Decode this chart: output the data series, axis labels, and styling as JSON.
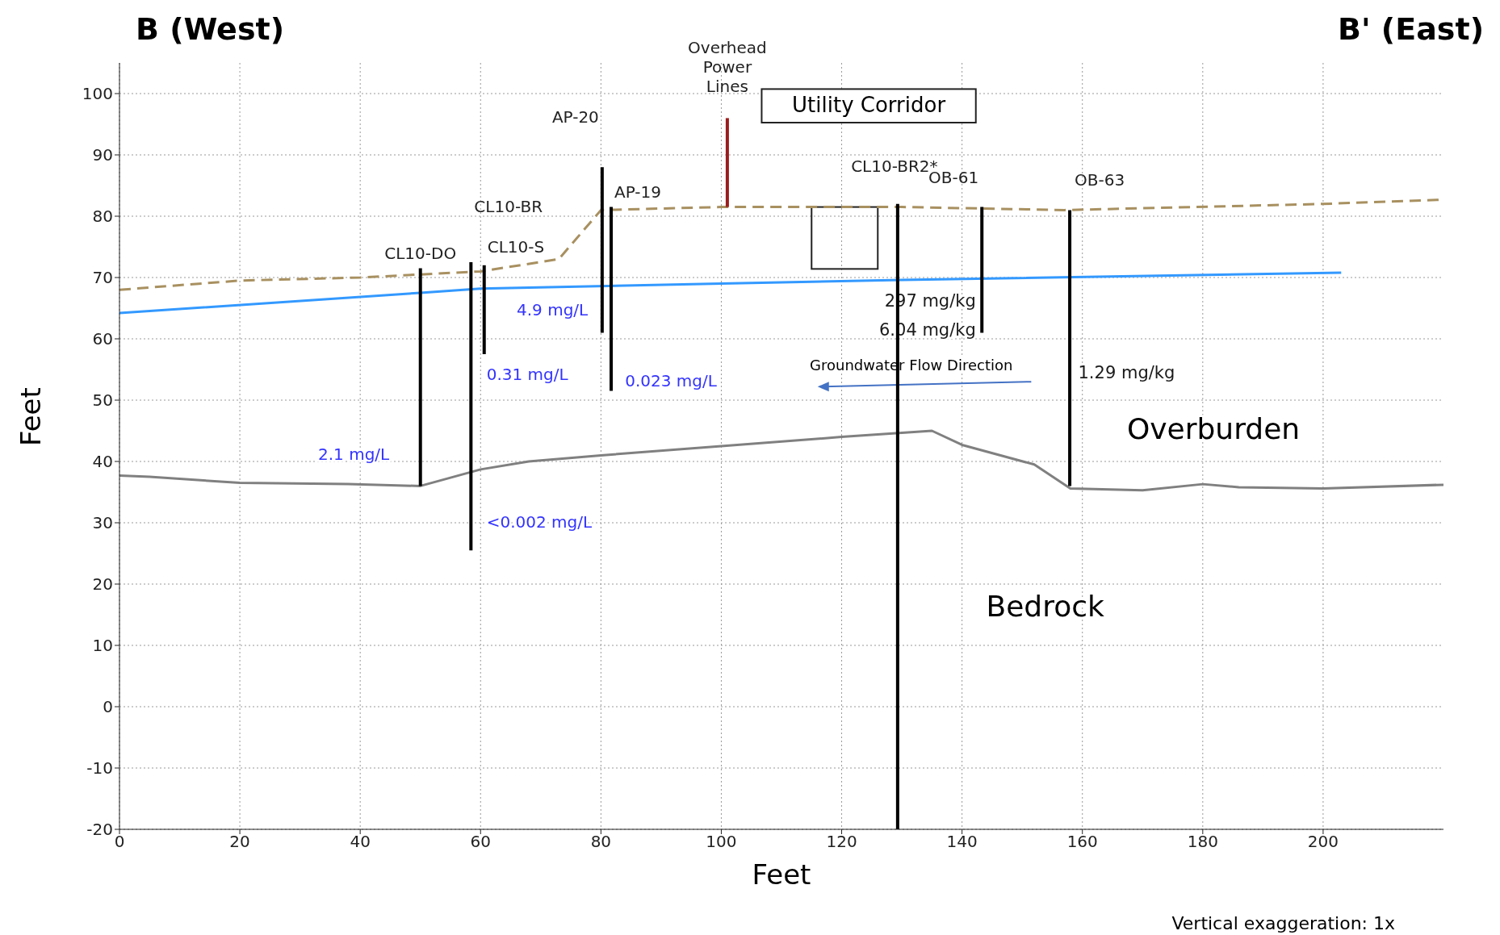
{
  "chart_data": {
    "type": "line",
    "title": "B (West)",
    "subtitle": "B' (East)",
    "xlabel": "Feet",
    "ylabel": "Feet",
    "xlim": [
      0,
      220
    ],
    "xticks": [
      0,
      20,
      40,
      60,
      80,
      100,
      120,
      140,
      160,
      180,
      200
    ],
    "ylim": [
      -20,
      105
    ],
    "yticks": [
      -20,
      -10,
      0,
      10,
      20,
      30,
      40,
      50,
      60,
      70,
      80,
      90,
      100
    ],
    "grid": true,
    "legend": false,
    "marker": "none",
    "series": [
      {
        "color": "#a89060",
        "line_style": "dashed",
        "x": [
          0,
          20,
          40,
          50,
          60,
          73,
          80,
          100,
          130,
          157,
          200,
          220
        ],
        "values": [
          68,
          69.5,
          70,
          70.5,
          71,
          73,
          81,
          81.5,
          81.5,
          81,
          82,
          82.7
        ]
      },
      {
        "color": "#3399ff",
        "x": [
          0,
          50,
          60,
          100,
          130,
          203
        ],
        "values": [
          64.2,
          67.5,
          68.2,
          69,
          69.6,
          70.8
        ]
      },
      {
        "color": "#808080",
        "x": [
          0,
          5,
          20,
          38,
          50,
          60,
          68,
          80,
          100,
          120,
          135,
          140,
          152,
          158,
          170,
          180,
          186,
          200,
          220
        ],
        "values": [
          37.7,
          37.5,
          36.5,
          36.3,
          36,
          38.7,
          40,
          41,
          42.5,
          44,
          45,
          42.7,
          39.5,
          35.6,
          35.3,
          36.3,
          35.8,
          35.6,
          36.2
        ]
      },
      {
        "name": "CL10-DO",
        "color": "#000000",
        "x": [
          50,
          50
        ],
        "values": [
          71.5,
          36
        ]
      },
      {
        "name": "CL10-BR",
        "color": "#000000",
        "x": [
          58.4,
          58.4
        ],
        "values": [
          72.5,
          25.5
        ]
      },
      {
        "name": "CL10-S",
        "color": "#000000",
        "x": [
          60.6,
          60.6
        ],
        "values": [
          72,
          57.5
        ]
      },
      {
        "name": "AP-20",
        "color": "#000000",
        "x": [
          80.2,
          80.2
        ],
        "values": [
          88,
          61
        ]
      },
      {
        "name": "AP-19",
        "color": "#000000",
        "x": [
          81.7,
          81.7
        ],
        "values": [
          81.5,
          51.5
        ]
      },
      {
        "name": "CL10-BR2*",
        "color": "#000000",
        "x": [
          129.3,
          129.3
        ],
        "values": [
          82,
          -20
        ]
      },
      {
        "name": "OB-61",
        "color": "#000000",
        "x": [
          143.3,
          143.3
        ],
        "values": [
          81.5,
          61
        ]
      },
      {
        "name": "OB-63",
        "color": "#000000",
        "x": [
          157.9,
          157.9
        ],
        "values": [
          81,
          36
        ]
      },
      {
        "name": "Overhead Power Lines",
        "color": "#9b1c1c",
        "x": [
          101,
          101
        ],
        "values": [
          81.5,
          96
        ]
      }
    ],
    "annotations": [
      "4.9 mg/L",
      "0.31 mg/L",
      "0.023 mg/L",
      "2.1 mg/L",
      "<0.002 mg/L",
      "297 mg/kg",
      "6.04 mg/kg",
      "1.29 mg/kg",
      "Groundwater Flow Direction",
      "Overburden",
      "Bedrock",
      "Utility Corridor",
      "Vertical exaggeration: 1x"
    ]
  }
}
